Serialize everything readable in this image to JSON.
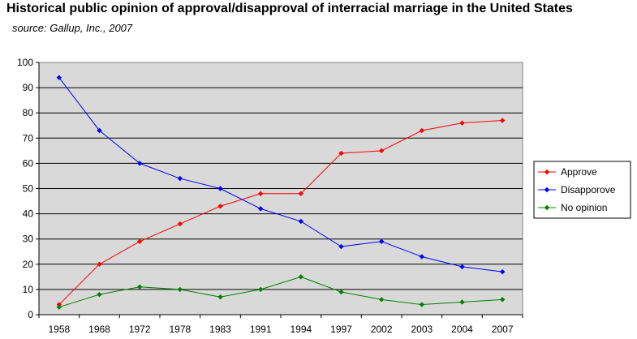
{
  "chart_data": {
    "type": "line",
    "title": "Historical public opinion of approval/disapproval of interracial marriage in the United States",
    "subtitle": "source: Gallup, Inc., 2007",
    "xlabel": "",
    "ylabel": "",
    "categories": [
      "1958",
      "1968",
      "1972",
      "1978",
      "1983",
      "1991",
      "1994",
      "1997",
      "2002",
      "2003",
      "2004",
      "2007"
    ],
    "yticks": [
      0,
      10,
      20,
      30,
      40,
      50,
      60,
      70,
      80,
      90,
      100
    ],
    "ylim": [
      0,
      100
    ],
    "grid": "horizontal",
    "legend": "right",
    "background": "#d9d9d9",
    "series": [
      {
        "name": "Approve",
        "color": "#ff0000",
        "values": [
          4,
          20,
          29,
          36,
          43,
          48,
          48,
          64,
          65,
          73,
          76,
          77
        ]
      },
      {
        "name": "Disapporove",
        "color": "#0000ff",
        "values": [
          94,
          73,
          60,
          54,
          50,
          42,
          37,
          27,
          29,
          23,
          19,
          17
        ]
      },
      {
        "name": "No opinion",
        "color": "#008000",
        "values": [
          3,
          8,
          11,
          10,
          7,
          10,
          15,
          9,
          6,
          4,
          5,
          6
        ]
      }
    ]
  }
}
